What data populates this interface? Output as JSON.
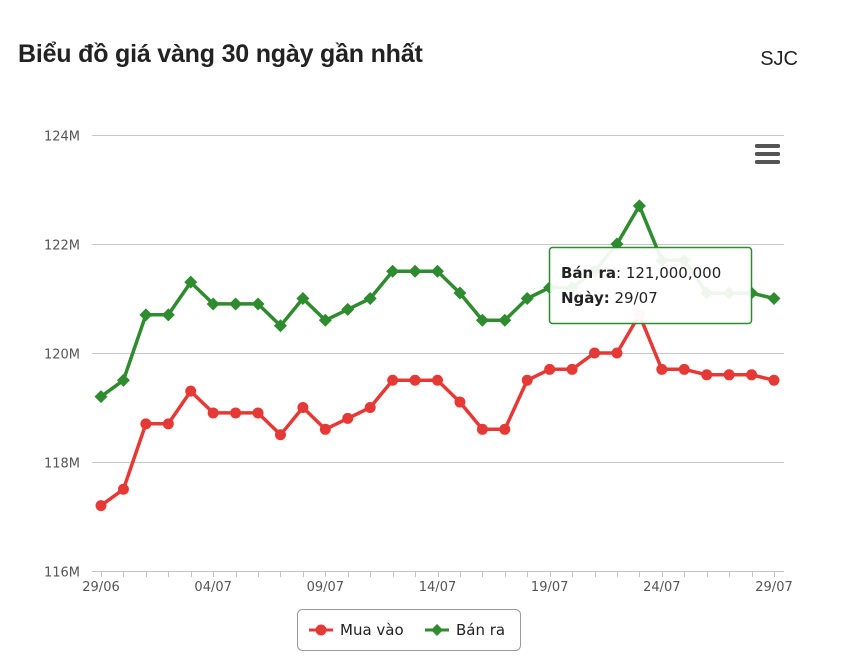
{
  "header": {
    "title": "Biểu đồ giá vàng 30 ngày gần nhất",
    "brand": "SJC"
  },
  "menu_icon": "hamburger-menu-icon",
  "colors": {
    "buy": "#e53935",
    "sell": "#2e8b2e",
    "grid": "#c8c8c8",
    "tooltip_border": "#2e8b2e"
  },
  "tooltip": {
    "series_label": "Bán ra",
    "value_text": "121,000,000",
    "date_label": "Ngày",
    "date_text": "29/07"
  },
  "chart_data": {
    "type": "line",
    "title": "",
    "xlabel": "",
    "ylabel": "",
    "ylim": [
      116,
      124
    ],
    "yticks": [
      "116M",
      "118M",
      "120M",
      "122M",
      "124M"
    ],
    "x": [
      "29/06",
      "30/06",
      "01/07",
      "02/07",
      "03/07",
      "04/07",
      "05/07",
      "06/07",
      "07/07",
      "08/07",
      "09/07",
      "10/07",
      "11/07",
      "12/07",
      "13/07",
      "14/07",
      "15/07",
      "16/07",
      "17/07",
      "18/07",
      "19/07",
      "20/07",
      "21/07",
      "22/07",
      "23/07",
      "24/07",
      "25/07",
      "26/07",
      "27/07",
      "28/07",
      "29/07"
    ],
    "xtick_labels": [
      "29/06",
      "04/07",
      "09/07",
      "14/07",
      "19/07",
      "24/07",
      "29/07"
    ],
    "xtick_indices": [
      0,
      5,
      10,
      15,
      20,
      25,
      30
    ],
    "grid": true,
    "legend": "bottom-center",
    "series": [
      {
        "name": "Mua vào",
        "marker": "circle",
        "values": [
          117.2,
          117.5,
          118.7,
          118.7,
          119.3,
          118.9,
          118.9,
          118.9,
          118.5,
          119.0,
          118.6,
          118.8,
          119.0,
          119.5,
          119.5,
          119.5,
          119.1,
          118.6,
          118.6,
          119.5,
          119.7,
          119.7,
          120.0,
          120.0,
          120.7,
          119.7,
          119.7,
          119.6,
          119.6,
          119.6,
          119.5
        ]
      },
      {
        "name": "Bán ra",
        "marker": "diamond",
        "values": [
          119.2,
          119.5,
          120.7,
          120.7,
          121.3,
          120.9,
          120.9,
          120.9,
          120.5,
          121.0,
          120.6,
          120.8,
          121.0,
          121.5,
          121.5,
          121.5,
          121.1,
          120.6,
          120.6,
          121.0,
          121.2,
          121.2,
          121.5,
          122.0,
          122.7,
          121.7,
          121.7,
          121.1,
          121.1,
          121.1,
          121.0
        ]
      }
    ]
  }
}
